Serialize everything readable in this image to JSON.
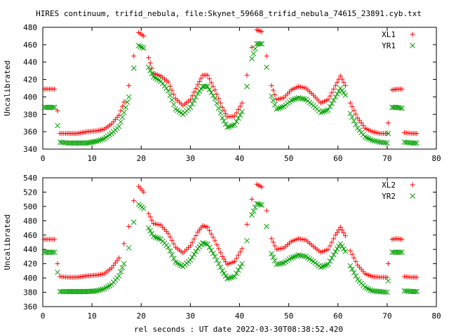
{
  "title": "HIRES continuum, trifid_nebula, file:Skynet_59668_trifid_nebula_74615_23891.cyb.txt",
  "xlabel": "rel seconds : UT date 2022-03-30T08:38:52.420",
  "chart_data": [
    {
      "type": "scatter",
      "ylabel": "Uncalibrated",
      "xlim": [
        0,
        80
      ],
      "ylim": [
        340,
        480
      ],
      "xticks": [
        0,
        10,
        20,
        30,
        40,
        50,
        60,
        70,
        80
      ],
      "yticks": [
        340,
        360,
        380,
        400,
        420,
        440,
        460,
        480
      ],
      "legend": "top-right",
      "series": [
        {
          "name": "XL1",
          "marker": "plus",
          "color": "#ff0000",
          "points": [
            [
              0.3,
              409
            ],
            [
              1.0,
              409
            ],
            [
              1.7,
              409
            ],
            [
              2.4,
              409
            ],
            [
              3.0,
              384
            ],
            [
              3.5,
              358
            ],
            [
              5,
              358
            ],
            [
              7,
              358
            ],
            [
              9,
              360
            ],
            [
              11,
              361
            ],
            [
              12.5,
              363
            ],
            [
              14,
              369
            ],
            [
              15.5,
              379
            ],
            [
              16.5,
              394
            ],
            [
              17.5,
              413
            ],
            [
              18.5,
              447
            ],
            [
              19.5,
              474
            ],
            [
              20.5,
              470
            ],
            [
              21.5,
              445
            ],
            [
              22.5,
              427
            ],
            [
              24,
              424
            ],
            [
              25.5,
              417
            ],
            [
              27,
              398
            ],
            [
              28.5,
              390
            ],
            [
              30,
              397
            ],
            [
              31.5,
              414
            ],
            [
              32.5,
              425
            ],
            [
              33.5,
              425
            ],
            [
              35,
              408
            ],
            [
              36.5,
              388
            ],
            [
              37.5,
              377
            ],
            [
              39,
              378
            ],
            [
              40.5,
              393
            ],
            [
              41.5,
              425
            ],
            [
              42.5,
              457
            ],
            [
              43.5,
              477
            ],
            [
              44.5,
              475
            ],
            [
              45.5,
              447
            ],
            [
              46.5,
              413
            ],
            [
              47.5,
              397
            ],
            [
              49,
              399
            ],
            [
              50.5,
              408
            ],
            [
              52,
              412
            ],
            [
              53.5,
              410
            ],
            [
              55,
              402
            ],
            [
              56.5,
              393
            ],
            [
              58,
              397
            ],
            [
              59.5,
              413
            ],
            [
              60.5,
              424
            ],
            [
              61.5,
              413
            ],
            [
              62.5,
              393
            ],
            [
              64,
              376
            ],
            [
              65.5,
              364
            ],
            [
              67,
              360
            ],
            [
              68.5,
              358
            ],
            [
              70,
              358
            ],
            [
              70.2,
              370
            ],
            [
              71,
              408
            ],
            [
              72,
              409
            ],
            [
              73,
              409
            ],
            [
              73.5,
              359
            ],
            [
              75,
              358
            ],
            [
              76,
              358
            ]
          ]
        },
        {
          "name": "YR1",
          "marker": "cross",
          "color": "#00a000",
          "points": [
            [
              0.3,
              388
            ],
            [
              1.0,
              388
            ],
            [
              1.7,
              388
            ],
            [
              2.4,
              388
            ],
            [
              3.0,
              367
            ],
            [
              3.5,
              348
            ],
            [
              5,
              347
            ],
            [
              7,
              347
            ],
            [
              9,
              347
            ],
            [
              11,
              349
            ],
            [
              12.5,
              352
            ],
            [
              14,
              358
            ],
            [
              15.5,
              366
            ],
            [
              16.5,
              382
            ],
            [
              17.5,
              400
            ],
            [
              18.5,
              433
            ],
            [
              19.5,
              459
            ],
            [
              20.5,
              456
            ],
            [
              21.5,
              434
            ],
            [
              22.5,
              423
            ],
            [
              24,
              418
            ],
            [
              25.5,
              407
            ],
            [
              27,
              386
            ],
            [
              28.5,
              380
            ],
            [
              30,
              388
            ],
            [
              31.5,
              404
            ],
            [
              32.5,
              412
            ],
            [
              33.5,
              412
            ],
            [
              35,
              398
            ],
            [
              36.5,
              376
            ],
            [
              37.5,
              365
            ],
            [
              39,
              368
            ],
            [
              40.5,
              383
            ],
            [
              41.5,
              412
            ],
            [
              42.5,
              444
            ],
            [
              43.5,
              461
            ],
            [
              44.5,
              461
            ],
            [
              45.5,
              434
            ],
            [
              46.5,
              401
            ],
            [
              47.5,
              386
            ],
            [
              49,
              389
            ],
            [
              50.5,
              396
            ],
            [
              52,
              399
            ],
            [
              53.5,
              397
            ],
            [
              55,
              390
            ],
            [
              56.5,
              382
            ],
            [
              58,
              385
            ],
            [
              59.5,
              400
            ],
            [
              60.5,
              410
            ],
            [
              61.5,
              402
            ],
            [
              62.5,
              381
            ],
            [
              64,
              364
            ],
            [
              65.5,
              354
            ],
            [
              67,
              350
            ],
            [
              68.5,
              348
            ],
            [
              70,
              347
            ],
            [
              70.2,
              358
            ],
            [
              71,
              388
            ],
            [
              72,
              388
            ],
            [
              73,
              387
            ],
            [
              73.5,
              348
            ],
            [
              75,
              347
            ],
            [
              76,
              347
            ]
          ]
        }
      ]
    },
    {
      "type": "scatter",
      "ylabel": "Uncalibrated",
      "xlim": [
        0,
        80
      ],
      "ylim": [
        360,
        540
      ],
      "xticks": [
        0,
        10,
        20,
        30,
        40,
        50,
        60,
        70,
        80
      ],
      "yticks": [
        360,
        380,
        400,
        420,
        440,
        460,
        480,
        500,
        520,
        540
      ],
      "legend": "top-right",
      "series": [
        {
          "name": "XL2",
          "marker": "plus",
          "color": "#ff0000",
          "points": [
            [
              0.3,
              454
            ],
            [
              1.0,
              454
            ],
            [
              1.7,
              454
            ],
            [
              2.4,
              454
            ],
            [
              3.0,
              420
            ],
            [
              3.5,
              402
            ],
            [
              5,
              401
            ],
            [
              7,
              401
            ],
            [
              9,
              403
            ],
            [
              11,
              404
            ],
            [
              12.5,
              406
            ],
            [
              14,
              414
            ],
            [
              15.5,
              428
            ],
            [
              16.5,
              448
            ],
            [
              17.5,
              472
            ],
            [
              18.5,
              508
            ],
            [
              19.5,
              528
            ],
            [
              20.5,
              520
            ],
            [
              21.5,
              490
            ],
            [
              22.5,
              476
            ],
            [
              24,
              474
            ],
            [
              25.5,
              462
            ],
            [
              27,
              443
            ],
            [
              28.5,
              435
            ],
            [
              30,
              445
            ],
            [
              31.5,
              464
            ],
            [
              32.5,
              473
            ],
            [
              33.5,
              471
            ],
            [
              35,
              452
            ],
            [
              36.5,
              430
            ],
            [
              37.5,
              419
            ],
            [
              39,
              423
            ],
            [
              40.5,
              441
            ],
            [
              41.5,
              475
            ],
            [
              42.5,
              510
            ],
            [
              43.5,
              531
            ],
            [
              44.5,
              527
            ],
            [
              45.5,
              494
            ],
            [
              46.5,
              455
            ],
            [
              47.5,
              440
            ],
            [
              49,
              442
            ],
            [
              50.5,
              451
            ],
            [
              52,
              455
            ],
            [
              53.5,
              453
            ],
            [
              55,
              444
            ],
            [
              56.5,
              436
            ],
            [
              58,
              440
            ],
            [
              59.5,
              460
            ],
            [
              60.5,
              471
            ],
            [
              61.5,
              459
            ],
            [
              62.5,
              438
            ],
            [
              64,
              418
            ],
            [
              65.5,
              406
            ],
            [
              67,
              402
            ],
            [
              68.5,
              401
            ],
            [
              70,
              401
            ],
            [
              70.2,
              420
            ],
            [
              71,
              454
            ],
            [
              72,
              455
            ],
            [
              73,
              454
            ],
            [
              73.5,
              402
            ],
            [
              75,
              401
            ],
            [
              76,
              401
            ]
          ]
        },
        {
          "name": "YR2",
          "marker": "cross",
          "color": "#00a000",
          "points": [
            [
              0.3,
              436
            ],
            [
              1.0,
              436
            ],
            [
              1.7,
              436
            ],
            [
              2.4,
              436
            ],
            [
              3.0,
              408
            ],
            [
              3.5,
              381
            ],
            [
              5,
              381
            ],
            [
              7,
              381
            ],
            [
              9,
              381
            ],
            [
              11,
              382
            ],
            [
              12.5,
              385
            ],
            [
              14,
              391
            ],
            [
              15.5,
              403
            ],
            [
              16.5,
              420
            ],
            [
              17.5,
              442
            ],
            [
              18.5,
              478
            ],
            [
              19.5,
              503
            ],
            [
              20.5,
              497
            ],
            [
              21.5,
              470
            ],
            [
              22.5,
              458
            ],
            [
              24,
              454
            ],
            [
              25.5,
              443
            ],
            [
              27,
              422
            ],
            [
              28.5,
              416
            ],
            [
              30,
              425
            ],
            [
              31.5,
              441
            ],
            [
              32.5,
              449
            ],
            [
              33.5,
              447
            ],
            [
              35,
              430
            ],
            [
              36.5,
              410
            ],
            [
              37.5,
              399
            ],
            [
              39,
              402
            ],
            [
              40.5,
              420
            ],
            [
              41.5,
              452
            ],
            [
              42.5,
              488
            ],
            [
              43.5,
              504
            ],
            [
              44.5,
              502
            ],
            [
              45.5,
              472
            ],
            [
              46.5,
              434
            ],
            [
              47.5,
              419
            ],
            [
              49,
              421
            ],
            [
              50.5,
              428
            ],
            [
              52,
              432
            ],
            [
              53.5,
              430
            ],
            [
              55,
              423
            ],
            [
              56.5,
              415
            ],
            [
              58,
              419
            ],
            [
              59.5,
              437
            ],
            [
              60.5,
              448
            ],
            [
              61.5,
              437
            ],
            [
              62.5,
              417
            ],
            [
              64,
              398
            ],
            [
              65.5,
              387
            ],
            [
              67,
              382
            ],
            [
              68.5,
              381
            ],
            [
              70,
              380
            ],
            [
              70.2,
              396
            ],
            [
              71,
              436
            ],
            [
              72,
              436
            ],
            [
              73,
              436
            ],
            [
              73.5,
              382
            ],
            [
              75,
              381
            ],
            [
              76,
              381
            ]
          ]
        }
      ]
    }
  ]
}
